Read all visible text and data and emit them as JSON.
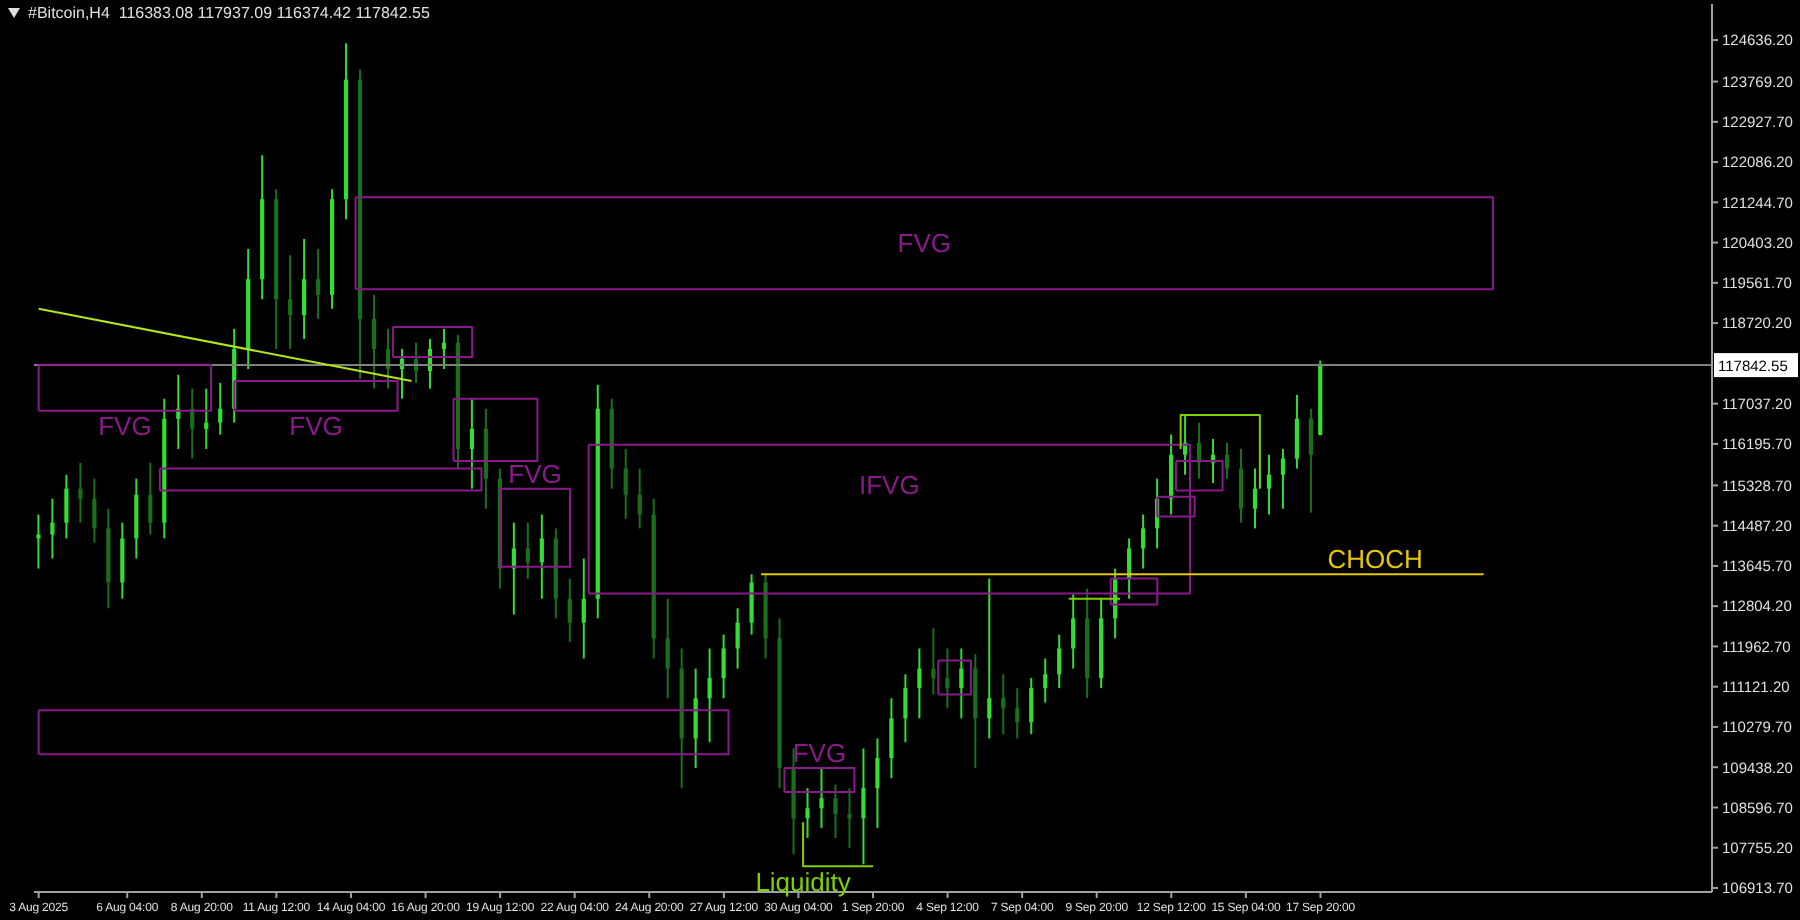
{
  "chart_data": {
    "type": "candlestick",
    "title": "#Bitcoin,H4  116383.08 117937.09 116374.42 117842.55",
    "colors": [
      "#33dd33",
      "#33dd33",
      "#33dd33",
      "#1a6f1a",
      "#1a6f1a",
      "#1a6f1a",
      "#33dd33",
      "#33dd33",
      "#1a6f1a",
      "#33dd33",
      "#33dd33",
      "#1a6f1a",
      "#33dd33",
      "#33dd33",
      "#33dd33",
      "#33dd33",
      "#33dd33",
      "#1a6f1a",
      "#1a6f1a",
      "#33dd33",
      "#1a6f1a",
      "#33dd33",
      "#33dd33",
      "#1a6f1a",
      "#1a6f1a",
      "#1a6f1a",
      "#33dd33",
      "#1a6f1a",
      "#33dd33",
      "#33dd33",
      "#1a6f1a",
      "#33dd33",
      "#1a6f1a",
      "#1a6f1a",
      "#33dd33",
      "#1a6f1a",
      "#33dd33",
      "#1a6f1a",
      "#1a6f1a",
      "#33dd33",
      "#33dd33",
      "#1a6f1a",
      "#1a6f1a",
      "#1a6f1a",
      "#1a6f1a",
      "#1a6f1a",
      "#1a6f1a",
      "#33dd33",
      "#33dd33",
      "#33dd33",
      "#33dd33",
      "#33dd33",
      "#1a6f1a",
      "#1a6f1a",
      "#1a6f1a",
      "#33dd33",
      "#33dd33",
      "#1a6f1a",
      "#1a6f1a",
      "#33dd33",
      "#33dd33",
      "#33dd33",
      "#33dd33",
      "#33dd33",
      "#1a6f1a",
      "#1a6f1a",
      "#33dd33",
      "#1a6f1a",
      "#33dd33",
      "#1a6f1a",
      "#1a6f1a",
      "#33dd33",
      "#33dd33",
      "#33dd33",
      "#33dd33",
      "#1a6f1a",
      "#33dd33",
      "#33dd33",
      "#33dd33",
      "#33dd33",
      "#33dd33",
      "#33dd33",
      "#33dd33",
      "#1a6f1a",
      "#33dd33",
      "#1a6f1a",
      "#1a6f1a",
      "#33dd33",
      "#33dd33",
      "#33dd33",
      "#33dd33",
      "#1a6f1a",
      "#33dd33"
    ],
    "x": [
      "2025-08-03T00:00",
      "2025-08-03T12:00",
      "2025-08-04T00:00",
      "2025-08-04T12:00",
      "2025-08-05T00:00",
      "2025-08-05T12:00",
      "2025-08-06T00:00",
      "2025-08-06T12:00",
      "2025-08-07T00:00",
      "2025-08-07T12:00",
      "2025-08-08T00:00",
      "2025-08-08T12:00",
      "2025-08-09T00:00",
      "2025-08-09T12:00",
      "2025-08-10T00:00",
      "2025-08-10T12:00",
      "2025-08-11T00:00",
      "2025-08-11T12:00",
      "2025-08-12T00:00",
      "2025-08-12T12:00",
      "2025-08-13T00:00",
      "2025-08-13T12:00",
      "2025-08-14T00:00",
      "2025-08-14T12:00",
      "2025-08-15T00:00",
      "2025-08-15T12:00",
      "2025-08-16T00:00",
      "2025-08-16T12:00",
      "2025-08-17T00:00",
      "2025-08-17T12:00",
      "2025-08-18T00:00",
      "2025-08-18T12:00",
      "2025-08-19T00:00",
      "2025-08-19T12:00",
      "2025-08-20T00:00",
      "2025-08-20T12:00",
      "2025-08-21T00:00",
      "2025-08-21T12:00",
      "2025-08-22T00:00",
      "2025-08-22T12:00",
      "2025-08-23T00:00",
      "2025-08-23T12:00",
      "2025-08-24T00:00",
      "2025-08-24T12:00",
      "2025-08-25T00:00",
      "2025-08-25T12:00",
      "2025-08-26T00:00",
      "2025-08-26T12:00",
      "2025-08-27T00:00",
      "2025-08-27T12:00",
      "2025-08-28T00:00",
      "2025-08-28T12:00",
      "2025-08-29T00:00",
      "2025-08-29T12:00",
      "2025-08-30T00:00",
      "2025-08-30T12:00",
      "2025-08-31T00:00",
      "2025-08-31T12:00",
      "2025-09-01T00:00",
      "2025-09-01T12:00",
      "2025-09-02T00:00",
      "2025-09-02T12:00",
      "2025-09-03T00:00",
      "2025-09-03T12:00",
      "2025-09-04T00:00",
      "2025-09-04T12:00",
      "2025-09-05T00:00",
      "2025-09-05T12:00",
      "2025-09-06T00:00",
      "2025-09-06T12:00",
      "2025-09-07T00:00",
      "2025-09-07T12:00",
      "2025-09-08T00:00",
      "2025-09-08T12:00",
      "2025-09-09T00:00",
      "2025-09-09T12:00",
      "2025-09-10T00:00",
      "2025-09-10T12:00",
      "2025-09-11T00:00",
      "2025-09-11T12:00",
      "2025-09-12T00:00",
      "2025-09-12T12:00",
      "2025-09-13T00:00",
      "2025-09-13T12:00",
      "2025-09-14T00:00",
      "2025-09-14T12:00",
      "2025-09-15T00:00",
      "2025-09-15T12:00",
      "2025-09-16T00:00",
      "2025-09-16T12:00",
      "2025-09-17T00:00",
      "2025-09-17T12:00",
      "2025-09-17T20:00"
    ],
    "ohlc": [
      [
        114220,
        114720,
        113590,
        114300
      ],
      [
        114300,
        115050,
        113800,
        114550
      ],
      [
        114550,
        115550,
        114220,
        115260
      ],
      [
        115260,
        115800,
        114550,
        115050
      ],
      [
        115050,
        115470,
        114130,
        114430
      ],
      [
        114430,
        114840,
        112760,
        113300
      ],
      [
        113300,
        114550,
        112960,
        114220
      ],
      [
        114220,
        115470,
        113800,
        115130
      ],
      [
        115130,
        115800,
        114300,
        114550
      ],
      [
        114550,
        117140,
        114220,
        116720
      ],
      [
        116720,
        117640,
        116090,
        116930
      ],
      [
        116930,
        117350,
        115890,
        116510
      ],
      [
        116510,
        117350,
        116090,
        116640
      ],
      [
        116640,
        117470,
        116390,
        116930
      ],
      [
        116930,
        118600,
        116640,
        118180
      ],
      [
        118180,
        120270,
        117760,
        119640
      ],
      [
        119640,
        122230,
        119220,
        121310
      ],
      [
        121310,
        121520,
        118180,
        119220
      ],
      [
        119220,
        120140,
        118180,
        118890
      ],
      [
        118890,
        120480,
        118390,
        119640
      ],
      [
        119640,
        120270,
        118810,
        119310
      ],
      [
        119310,
        121520,
        119020,
        121310
      ],
      [
        121310,
        124570,
        120890,
        123810
      ],
      [
        123810,
        124020,
        117550,
        118810
      ],
      [
        118810,
        119310,
        117350,
        118180
      ],
      [
        118180,
        118600,
        117350,
        117760
      ],
      [
        117760,
        118180,
        117140,
        117970
      ],
      [
        117970,
        118310,
        117470,
        117720
      ],
      [
        117720,
        118390,
        117350,
        118180
      ],
      [
        118180,
        118600,
        117760,
        118310
      ],
      [
        118310,
        118470,
        115680,
        116090
      ],
      [
        116090,
        117140,
        115260,
        116510
      ],
      [
        116510,
        116930,
        114840,
        115470
      ],
      [
        115470,
        115680,
        113170,
        113590
      ],
      [
        113590,
        114550,
        112630,
        114010
      ],
      [
        114010,
        114550,
        113380,
        113720
      ],
      [
        113720,
        114720,
        112960,
        114220
      ],
      [
        114220,
        114430,
        112550,
        112960
      ],
      [
        112960,
        113380,
        112050,
        112460
      ],
      [
        112460,
        113800,
        111710,
        112960
      ],
      [
        112960,
        117430,
        112550,
        116930
      ],
      [
        116930,
        117140,
        115260,
        115680
      ],
      [
        115680,
        116090,
        114630,
        115130
      ],
      [
        115130,
        115680,
        114430,
        114720
      ],
      [
        114720,
        115050,
        111710,
        112130
      ],
      [
        112130,
        112960,
        110880,
        111500
      ],
      [
        111500,
        111920,
        109000,
        110040
      ],
      [
        110040,
        111500,
        109420,
        110880
      ],
      [
        110880,
        111920,
        109960,
        111300
      ],
      [
        111300,
        112210,
        110880,
        111920
      ],
      [
        111920,
        112760,
        111500,
        112460
      ],
      [
        112460,
        113470,
        112210,
        113300
      ],
      [
        113300,
        113470,
        111710,
        112130
      ],
      [
        112130,
        112550,
        109000,
        109420
      ],
      [
        109420,
        109830,
        107620,
        108370
      ],
      [
        108370,
        109000,
        107960,
        108580
      ],
      [
        108580,
        109420,
        108170,
        108790
      ],
      [
        108790,
        109080,
        107960,
        108460
      ],
      [
        108460,
        109000,
        107750,
        108370
      ],
      [
        108370,
        109830,
        107410,
        109000
      ],
      [
        109000,
        110040,
        108170,
        109630
      ],
      [
        109630,
        110880,
        109210,
        110460
      ],
      [
        110460,
        111380,
        109960,
        111090
      ],
      [
        111090,
        111920,
        110460,
        111500
      ],
      [
        111500,
        112340,
        110960,
        111300
      ],
      [
        111300,
        111920,
        110670,
        111090
      ],
      [
        111090,
        111920,
        110460,
        111500
      ],
      [
        111500,
        111800,
        109420,
        110460
      ],
      [
        110460,
        113380,
        110040,
        110880
      ],
      [
        110880,
        111380,
        110130,
        110670
      ],
      [
        110670,
        111090,
        110040,
        110380
      ],
      [
        110380,
        111300,
        110130,
        111090
      ],
      [
        111090,
        111710,
        110790,
        111380
      ],
      [
        111380,
        112210,
        111090,
        111920
      ],
      [
        111920,
        113050,
        111500,
        112550
      ],
      [
        112550,
        113170,
        110880,
        111300
      ],
      [
        111300,
        112960,
        111090,
        112550
      ],
      [
        112550,
        113590,
        112130,
        113380
      ],
      [
        113380,
        114220,
        112960,
        114010
      ],
      [
        114010,
        114720,
        113590,
        114430
      ],
      [
        114430,
        115470,
        114010,
        115050
      ],
      [
        115050,
        116390,
        114720,
        115970
      ],
      [
        115970,
        116800,
        115550,
        116220
      ],
      [
        116220,
        116640,
        115470,
        115800
      ],
      [
        115800,
        116300,
        115380,
        115970
      ],
      [
        115970,
        116220,
        115470,
        115680
      ],
      [
        115680,
        116090,
        114550,
        114840
      ],
      [
        114840,
        115680,
        114430,
        115260
      ],
      [
        115260,
        115970,
        114720,
        115550
      ],
      [
        115550,
        116090,
        114840,
        115890
      ],
      [
        115890,
        117220,
        115680,
        116720
      ],
      [
        116720,
        116930,
        114760,
        115970
      ],
      [
        116383.08,
        117937.09,
        116374.42,
        117842.55
      ]
    ],
    "series": [
      {
        "type": "line",
        "name": "FVG",
        "x": [
          "2025-08-14T08:00",
          "2025-09-24T00:00",
          "2025-09-24T00:00",
          "2025-08-14T08:00"
        ],
        "values": [
          121350,
          121350,
          119430,
          119430
        ],
        "color": "#8a1a8a"
      },
      {
        "type": "line",
        "name": "FVG",
        "x": [
          "2025-08-03T00:00",
          "2025-08-09T04:00",
          "2025-08-09T04:00",
          "2025-08-03T00:00"
        ],
        "values": [
          117850,
          117850,
          116890,
          116890
        ],
        "color": "#8a1a8a"
      },
      {
        "type": "line",
        "name": "FVG",
        "x": [
          "2025-08-10T00:00",
          "2025-08-15T20:00",
          "2025-08-15T20:00",
          "2025-08-10T00:00"
        ],
        "values": [
          117510,
          117510,
          116890,
          116890
        ],
        "color": "#8a1a8a"
      },
      {
        "type": "line",
        "x": [
          "2025-08-07T08:00",
          "2025-08-18T20:00",
          "2025-08-18T20:00",
          "2025-08-07T08:00"
        ],
        "values": [
          115680,
          115680,
          115220,
          115220
        ],
        "color": "#8a1a8a"
      },
      {
        "type": "line",
        "x": [
          "2025-08-15T16:00",
          "2025-08-18T12:00",
          "2025-08-18T12:00",
          "2025-08-15T16:00"
        ],
        "values": [
          118640,
          118640,
          118010,
          118010
        ],
        "color": "#8a1a8a"
      },
      {
        "type": "line",
        "x": [
          "2025-08-17T20:00",
          "2025-08-20T20:00",
          "2025-08-20T20:00",
          "2025-08-17T20:00"
        ],
        "values": [
          117140,
          117140,
          115840,
          115840
        ],
        "color": "#8a1a8a"
      },
      {
        "type": "line",
        "name": "FVG",
        "x": [
          "2025-08-19T12:00",
          "2025-08-22T00:00",
          "2025-08-22T00:00",
          "2025-08-19T12:00"
        ],
        "values": [
          115260,
          115260,
          113630,
          113630
        ],
        "color": "#8a1a8a"
      },
      {
        "type": "line",
        "name": "IFVG",
        "x": [
          "2025-08-22T16:00",
          "2025-09-13T04:00",
          "2025-09-13T04:00",
          "2025-08-22T16:00"
        ],
        "values": [
          116180,
          116180,
          113070,
          113070
        ],
        "color": "#8a1a8a"
      },
      {
        "type": "line",
        "x": [
          "2025-08-03T00:00",
          "2025-08-27T16:00",
          "2025-08-27T16:00",
          "2025-08-03T00:00"
        ],
        "values": [
          110630,
          110630,
          109710,
          109710
        ],
        "color": "#8a1a8a"
      },
      {
        "type": "line",
        "name": "FVG",
        "x": [
          "2025-08-29T16:00",
          "2025-09-01T04:00",
          "2025-09-01T04:00",
          "2025-08-29T16:00"
        ],
        "values": [
          109420,
          109420,
          108920,
          108920
        ],
        "color": "#8a1a8a"
      },
      {
        "type": "line",
        "x": [
          "2025-09-04T04:00",
          "2025-09-05T08:00",
          "2025-09-05T08:00",
          "2025-09-04T04:00"
        ],
        "values": [
          111670,
          111670,
          110960,
          110960
        ],
        "color": "#8a1a8a"
      },
      {
        "type": "line",
        "x": [
          "2025-09-10T08:00",
          "2025-09-12T00:00",
          "2025-09-12T00:00",
          "2025-09-10T08:00"
        ],
        "values": [
          113380,
          113380,
          112840,
          112840
        ],
        "color": "#8a1a8a"
      },
      {
        "type": "line",
        "x": [
          "2025-09-12T00:00",
          "2025-09-13T08:00",
          "2025-09-13T08:00",
          "2025-09-12T00:00"
        ],
        "values": [
          115090,
          115090,
          114680,
          114680
        ],
        "color": "#8a1a8a"
      },
      {
        "type": "line",
        "x": [
          "2025-09-12T16:00",
          "2025-09-14T08:00",
          "2025-09-14T08:00",
          "2025-09-12T16:00"
        ],
        "values": [
          115840,
          115840,
          115220,
          115220
        ],
        "color": "#8a1a8a"
      },
      {
        "type": "line",
        "x": [
          "2025-08-03T00:00",
          "2025-08-16T08:00"
        ],
        "values": [
          119020,
          117510
        ],
        "color": "#b4e61e"
      },
      {
        "type": "line",
        "name": "CHOCH",
        "x": [
          "2025-08-28T20:00",
          "2025-09-23T16:00"
        ],
        "values": [
          113470,
          113470
        ],
        "color": "#e6c800"
      },
      {
        "type": "line",
        "name": "Liquidity",
        "x": [
          "2025-08-30T08:00",
          "2025-08-30T08:00",
          "2025-09-01T20:00"
        ],
        "values": [
          108290,
          107370,
          107370
        ],
        "color": "#7fd000"
      },
      {
        "type": "line",
        "x": [
          "2025-09-08T20:00",
          "2025-09-10T16:00"
        ],
        "values": [
          112960,
          112960
        ],
        "color": "#7fd000"
      },
      {
        "type": "line",
        "x": [
          "2025-09-12T20:00",
          "2025-09-12T20:00",
          "2025-09-15T16:00",
          "2025-09-15T16:00"
        ],
        "values": [
          116090,
          116800,
          116800,
          115260
        ],
        "color": "#7fd000"
      }
    ],
    "ref_lines": [
      {
        "axis": "y",
        "value": 117842.55,
        "label": "117842.55",
        "color": "#808080"
      }
    ],
    "xlim": [
      "2025-08-02T20:00",
      "2025-10-01T20:00"
    ],
    "xticks": [
      {
        "value": "2025-08-03T00:00",
        "label": "3 Aug 2025"
      },
      {
        "value": "2025-08-06T04:00",
        "label": "6 Aug 04:00"
      },
      {
        "value": "2025-08-08T20:00",
        "label": "8 Aug 20:00"
      },
      {
        "value": "2025-08-11T12:00",
        "label": "11 Aug 12:00"
      },
      {
        "value": "2025-08-14T04:00",
        "label": "14 Aug 04:00"
      },
      {
        "value": "2025-08-16T20:00",
        "label": "16 Aug 20:00"
      },
      {
        "value": "2025-08-19T12:00",
        "label": "19 Aug 12:00"
      },
      {
        "value": "2025-08-22T04:00",
        "label": "22 Aug 04:00"
      },
      {
        "value": "2025-08-24T20:00",
        "label": "24 Aug 20:00"
      },
      {
        "value": "2025-08-27T12:00",
        "label": "27 Aug 12:00"
      },
      {
        "value": "2025-08-30T04:00",
        "label": "30 Aug 04:00"
      },
      {
        "value": "2025-09-01T20:00",
        "label": "1 Sep 20:00"
      },
      {
        "value": "2025-09-04T12:00",
        "label": "4 Sep 12:00"
      },
      {
        "value": "2025-09-07T04:00",
        "label": "7 Sep 04:00"
      },
      {
        "value": "2025-09-09T20:00",
        "label": "9 Sep 20:00"
      },
      {
        "value": "2025-09-12T12:00",
        "label": "12 Sep 12:00"
      },
      {
        "value": "2025-09-15T04:00",
        "label": "15 Sep 04:00"
      },
      {
        "value": "2025-09-17T20:00",
        "label": "17 Sep 20:00"
      }
    ],
    "ylim": [
      106830,
      125390
    ],
    "yticks": [
      {
        "value": 106913.7,
        "label": "106913.70"
      },
      {
        "value": 107755.2,
        "label": "107755.20"
      },
      {
        "value": 108596.7,
        "label": "108596.70"
      },
      {
        "value": 109438.2,
        "label": "109438.20"
      },
      {
        "value": 110279.7,
        "label": "110279.70"
      },
      {
        "value": 111121.2,
        "label": "111121.20"
      },
      {
        "value": 111962.7,
        "label": "111962.70"
      },
      {
        "value": 112804.2,
        "label": "112804.20"
      },
      {
        "value": 113645.7,
        "label": "113645.70"
      },
      {
        "value": 114487.2,
        "label": "114487.20"
      },
      {
        "value": 115328.7,
        "label": "115328.70"
      },
      {
        "value": 116195.7,
        "label": "116195.70"
      },
      {
        "value": 117037.2,
        "label": "117037.20"
      },
      {
        "value": 118720.2,
        "label": "118720.20"
      },
      {
        "value": 119561.7,
        "label": "119561.70"
      },
      {
        "value": 120403.2,
        "label": "120403.20"
      },
      {
        "value": 121244.7,
        "label": "121244.70"
      },
      {
        "value": 122086.2,
        "label": "122086.20"
      },
      {
        "value": 122927.7,
        "label": "122927.70"
      },
      {
        "value": 123769.2,
        "label": "123769.20"
      },
      {
        "value": 124636.2,
        "label": "124636.20"
      }
    ]
  }
}
